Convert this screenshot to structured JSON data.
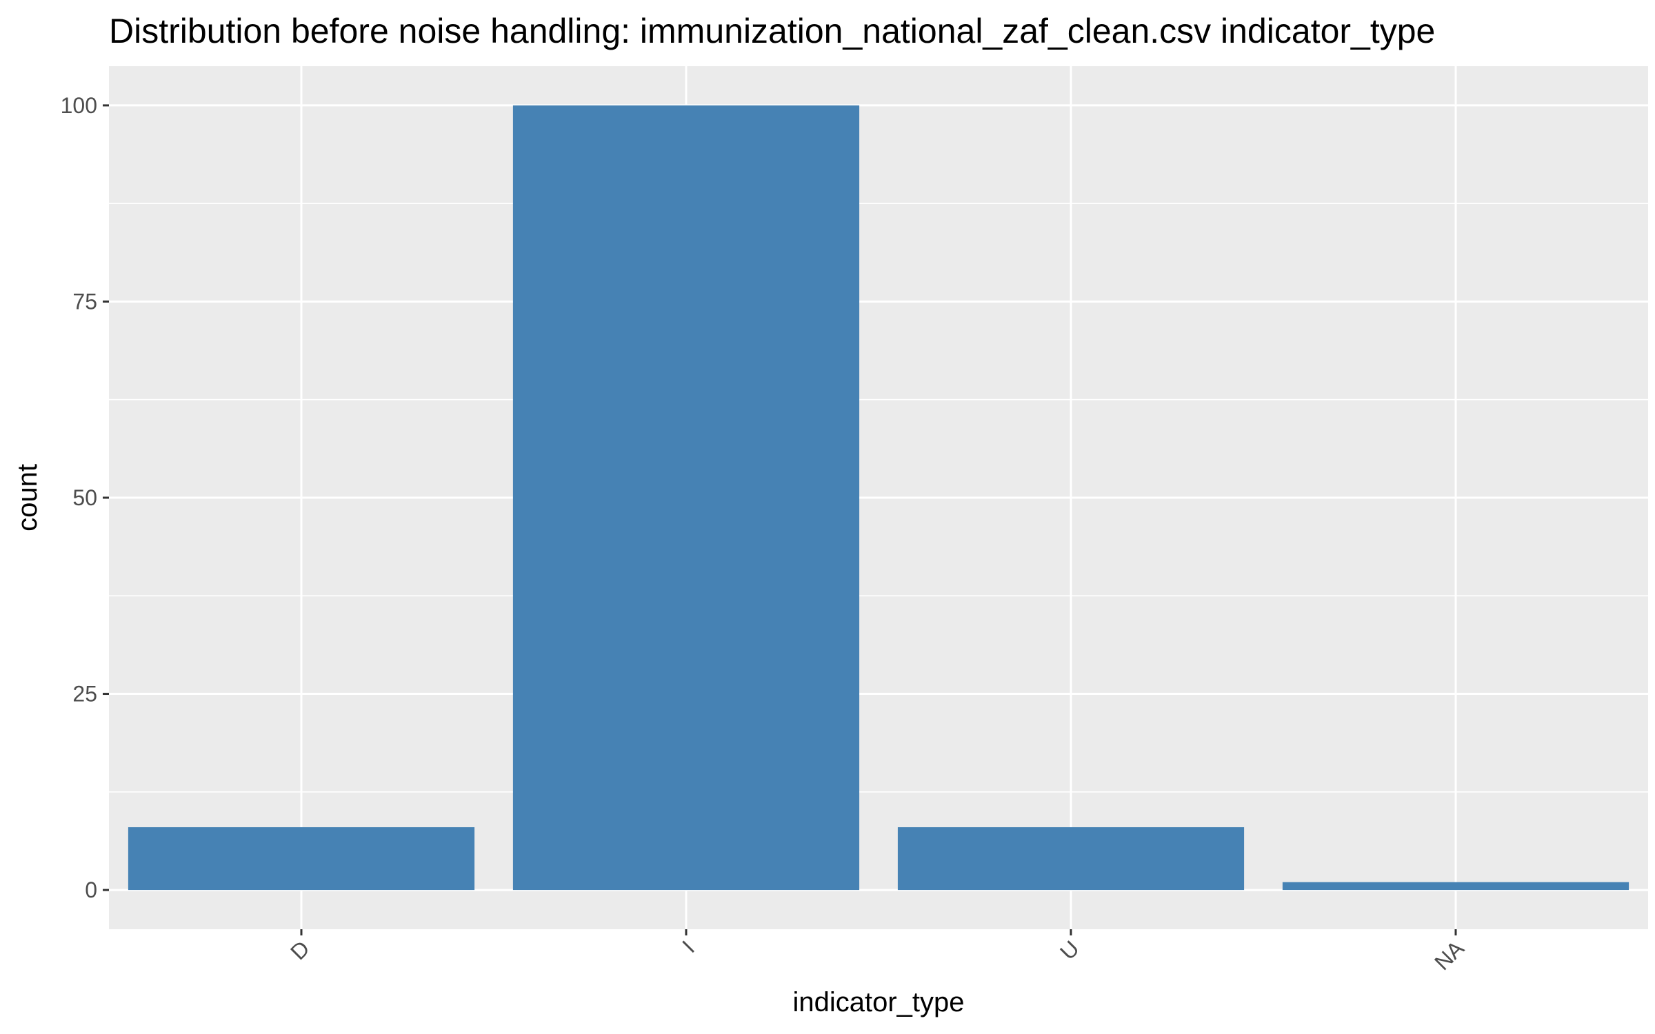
{
  "chart_data": {
    "type": "bar",
    "title": "Distribution before noise handling: immunization_national_zaf_clean.csv indicator_type",
    "xlabel": "indicator_type",
    "ylabel": "count",
    "categories": [
      "D",
      "I",
      "U",
      "NA"
    ],
    "values": [
      8,
      100,
      8,
      1
    ],
    "ylim": [
      -5,
      105
    ],
    "yticks": [
      0,
      25,
      50,
      75,
      100
    ],
    "grid": true,
    "legend": "none",
    "colors": {
      "bar": "#4682b4",
      "panel": "#ebebeb",
      "grid": "#ffffff",
      "tick": "#333333"
    }
  }
}
